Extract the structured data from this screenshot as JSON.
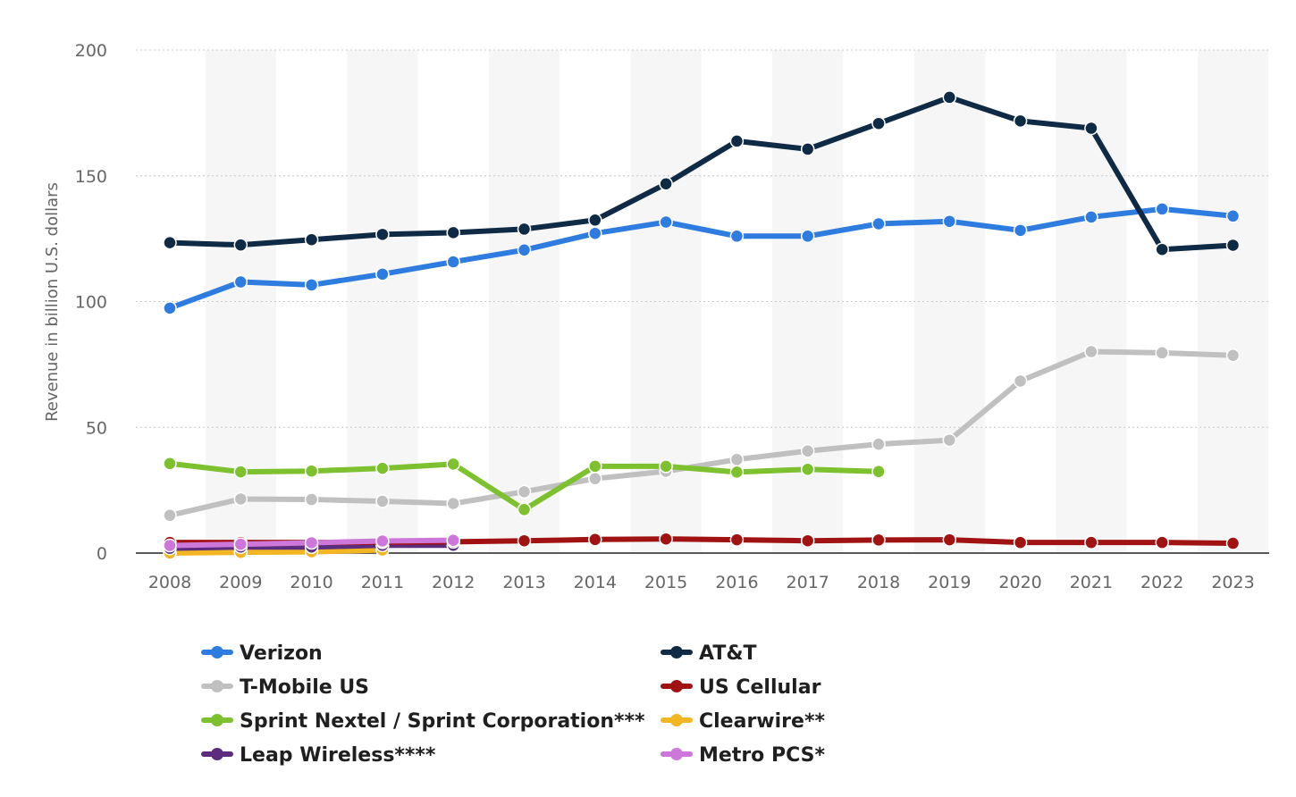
{
  "chart_data": {
    "type": "line",
    "title": "",
    "xlabel": "",
    "ylabel": "Revenue in billion U.S. dollars",
    "ylim": [
      0,
      200
    ],
    "yticks": [
      0,
      50,
      100,
      150,
      200
    ],
    "grid": true,
    "legend_position": "bottom",
    "categories": [
      "2008",
      "2009",
      "2010",
      "2011",
      "2012",
      "2013",
      "2014",
      "2015",
      "2016",
      "2017",
      "2018",
      "2019",
      "2020",
      "2021",
      "2022",
      "2023"
    ],
    "series": [
      {
        "name": "Verizon",
        "color": "#2f7ce0",
        "values": [
          97.4,
          107.8,
          106.6,
          110.9,
          115.8,
          120.5,
          127.1,
          131.6,
          126.0,
          126.0,
          130.9,
          131.9,
          128.3,
          133.6,
          136.8,
          134.0
        ]
      },
      {
        "name": "AT&T",
        "color": "#0f2a44",
        "values": [
          123.4,
          122.5,
          124.6,
          126.7,
          127.4,
          128.8,
          132.4,
          146.8,
          163.8,
          160.6,
          170.8,
          181.2,
          171.8,
          168.9,
          120.7,
          122.4
        ]
      },
      {
        "name": "T-Mobile US",
        "color": "#c0c0c0",
        "values": [
          15.0,
          21.5,
          21.3,
          20.6,
          19.7,
          24.4,
          29.6,
          32.5,
          37.2,
          40.6,
          43.3,
          44.9,
          68.4,
          80.1,
          79.6,
          78.6
        ]
      },
      {
        "name": "US Cellular",
        "color": "#a11212",
        "values": [
          4.2,
          4.2,
          4.2,
          4.3,
          4.5,
          4.9,
          5.4,
          5.6,
          5.3,
          4.9,
          5.2,
          5.3,
          4.2,
          4.2,
          4.2,
          3.9
        ]
      },
      {
        "name": "Sprint Nextel / Sprint Corporation***",
        "color": "#7dc12e",
        "values": [
          35.6,
          32.3,
          32.6,
          33.7,
          35.4,
          17.3,
          34.5,
          34.5,
          32.2,
          33.3,
          32.4,
          null,
          null,
          null,
          null,
          null
        ]
      },
      {
        "name": "Clearwire**",
        "color": "#f2b624",
        "values": [
          0.0,
          0.3,
          0.5,
          1.2,
          null,
          null,
          null,
          null,
          null,
          null,
          null,
          null,
          null,
          null,
          null,
          null
        ]
      },
      {
        "name": "Leap Wireless****",
        "color": "#5c2d7e",
        "values": [
          1.9,
          2.4,
          2.4,
          3.1,
          3.1,
          null,
          null,
          null,
          null,
          null,
          null,
          null,
          null,
          null,
          null,
          null
        ]
      },
      {
        "name": "Metro PCS*",
        "color": "#cd77da",
        "values": [
          3.0,
          3.5,
          4.1,
          4.8,
          5.1,
          null,
          null,
          null,
          null,
          null,
          null,
          null,
          null,
          null,
          null,
          null
        ]
      }
    ]
  }
}
